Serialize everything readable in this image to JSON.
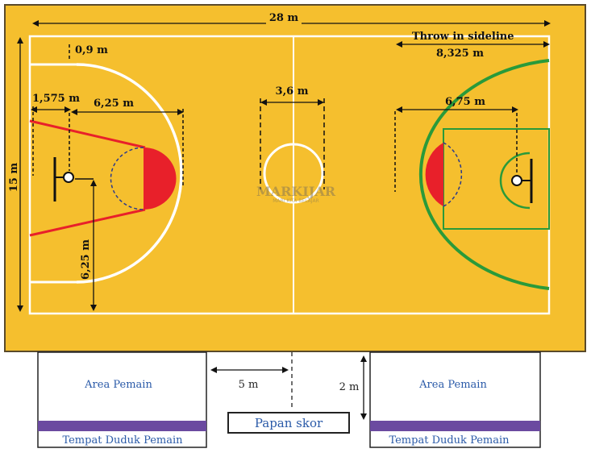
{
  "dimensions": {
    "length": "28 m",
    "width": "15 m",
    "corner_three": "0,9 m",
    "throw_in": "Throw in sideline",
    "throw_in_dist": "8,325 m",
    "backboard": "1,575 m",
    "three_radius_left": "6,25 m",
    "center_circle": "3,6 m",
    "three_radius_right": "6,75 m",
    "vertical_radius": "6,25 m",
    "bench_gap": "5 m",
    "bench_depth": "2 m"
  },
  "watermark": {
    "title": "MARKIJAR",
    "subtitle": "MARI KITA BELAJAR"
  },
  "areas": {
    "left_area": "Area Pemain",
    "left_seat": "Tempat Duduk Pemain",
    "scoreboard": "Papan skor",
    "right_area": "Area Pemain",
    "right_seat": "Tempat Duduk Pemain"
  },
  "colors": {
    "court": "#f5bf2e",
    "left_lines": "#ffffff",
    "right_arc": "#2a9a3a",
    "key_red": "#e8202a",
    "seat_bar": "#6b4aa0"
  }
}
